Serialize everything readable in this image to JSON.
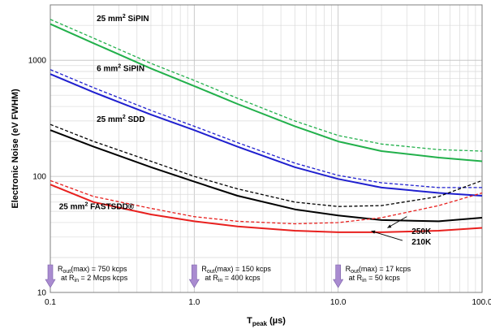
{
  "chart_data": {
    "type": "line",
    "x_scale": "log",
    "y_scale": "log",
    "xlim": [
      0.1,
      100
    ],
    "ylim": [
      10,
      3000
    ],
    "xlabel": {
      "main": "T",
      "sub": "peak",
      "unit": " (µs)"
    },
    "ylabel": "Electronic Noise (eV FWHM)",
    "grid": true,
    "x_ticks": [
      {
        "value": 0.1,
        "label": "0.1"
      },
      {
        "value": 1,
        "label": "1.0"
      },
      {
        "value": 10,
        "label": "10.0"
      },
      {
        "value": 100,
        "label": "100.0"
      }
    ],
    "y_ticks": [
      {
        "value": 10,
        "label": "10"
      },
      {
        "value": 100,
        "label": "100"
      },
      {
        "value": 1000,
        "label": "1000"
      }
    ],
    "series": [
      {
        "label_id": "sipin25",
        "temp": "210K",
        "color": "#22b04b",
        "dash": false,
        "x": [
          0.1,
          0.2,
          0.5,
          1,
          2,
          5,
          10,
          20,
          50,
          100
        ],
        "y": [
          2050,
          1400,
          850,
          600,
          420,
          270,
          200,
          165,
          145,
          135
        ]
      },
      {
        "label_id": "sipin25",
        "temp": "250K",
        "color": "#22b04b",
        "dash": true,
        "x": [
          0.1,
          0.2,
          0.5,
          1,
          2,
          5,
          10,
          20,
          50,
          100
        ],
        "y": [
          2250,
          1550,
          940,
          670,
          470,
          300,
          225,
          190,
          170,
          165
        ]
      },
      {
        "label_id": "sipin6",
        "temp": "210K",
        "color": "#1f1fcf",
        "dash": false,
        "x": [
          0.1,
          0.2,
          0.5,
          1,
          2,
          5,
          10,
          20,
          50,
          100
        ],
        "y": [
          760,
          530,
          340,
          250,
          180,
          120,
          95,
          80,
          72,
          68
        ]
      },
      {
        "label_id": "sipin6",
        "temp": "250K",
        "color": "#1f1fcf",
        "dash": true,
        "x": [
          0.1,
          0.2,
          0.5,
          1,
          2,
          5,
          10,
          20,
          50,
          100
        ],
        "y": [
          830,
          580,
          370,
          270,
          195,
          130,
          102,
          88,
          80,
          80
        ]
      },
      {
        "label_id": "sdd25",
        "temp": "210K",
        "color": "#000000",
        "dash": false,
        "x": [
          0.1,
          0.2,
          0.5,
          1,
          2,
          5,
          10,
          20,
          50,
          100
        ],
        "y": [
          250,
          180,
          120,
          90,
          68,
          52,
          46,
          42,
          41,
          44
        ]
      },
      {
        "label_id": "sdd25",
        "temp": "250K",
        "color": "#000000",
        "dash": true,
        "x": [
          0.1,
          0.2,
          0.5,
          1,
          2,
          5,
          10,
          20,
          50,
          100
        ],
        "y": [
          280,
          200,
          135,
          100,
          78,
          60,
          55,
          56,
          67,
          92
        ]
      },
      {
        "label_id": "fastsdd25",
        "temp": "210K",
        "color": "#e8201e",
        "dash": false,
        "x": [
          0.1,
          0.2,
          0.5,
          1,
          2,
          5,
          10,
          20,
          50,
          100
        ],
        "y": [
          85,
          60,
          47,
          41,
          37,
          34,
          33,
          33,
          34,
          36
        ]
      },
      {
        "label_id": "fastsdd25",
        "temp": "250K",
        "color": "#e8201e",
        "dash": true,
        "x": [
          0.1,
          0.2,
          0.5,
          1,
          2,
          5,
          10,
          20,
          50,
          100
        ],
        "y": [
          92,
          67,
          53,
          45,
          41,
          39,
          40,
          44,
          56,
          72
        ]
      }
    ],
    "labels": [
      {
        "id": "sipin25",
        "pre": "25 mm",
        "sup": "2",
        "post": " SiPIN",
        "x": 0.21,
        "y": 2180
      },
      {
        "id": "sipin6",
        "pre": "6 mm",
        "sup": "2",
        "post": " SiPIN",
        "x": 0.21,
        "y": 810
      },
      {
        "id": "sdd25",
        "pre": "25 mm",
        "sup": "2",
        "post": " SDD",
        "x": 0.21,
        "y": 295
      },
      {
        "id": "fastsdd25",
        "pre": "25 mm",
        "sup": "2",
        "post": " FASTSDD®",
        "x": 0.115,
        "y": 52
      }
    ],
    "temperature_labels": [
      {
        "text": "250K",
        "x": 30,
        "y": 34,
        "arrow_from": {
          "x": 30,
          "y": 45
        },
        "arrow_to": {
          "x": 22,
          "y": 36
        }
      },
      {
        "text": "210K",
        "x": 30,
        "y": 27.5,
        "arrow_from": {
          "x": 28,
          "y": 28
        },
        "arrow_to": {
          "x": 17,
          "y": 33.8
        }
      }
    ],
    "rate_notes": [
      {
        "x": 0.1,
        "line1_pre": "R",
        "line1_sub": "out",
        "line1_post": "(max) = 750 kcps",
        "line2_pre": "at R",
        "line2_sub": "in",
        "line2_post": " = 2 Mcps kcps"
      },
      {
        "x": 1,
        "line1_pre": "R",
        "line1_sub": "out",
        "line1_post": "(max) = 150 kcps",
        "line2_pre": "at R",
        "line2_sub": "in",
        "line2_post": " = 400 kcps"
      },
      {
        "x": 10,
        "line1_pre": "R",
        "line1_sub": "out",
        "line1_post": "(max) = 17 kcps",
        "line2_pre": "at R",
        "line2_sub": "in",
        "line2_post": " = 50 kcps"
      }
    ],
    "note_arrow_color": "#a98bd0"
  }
}
